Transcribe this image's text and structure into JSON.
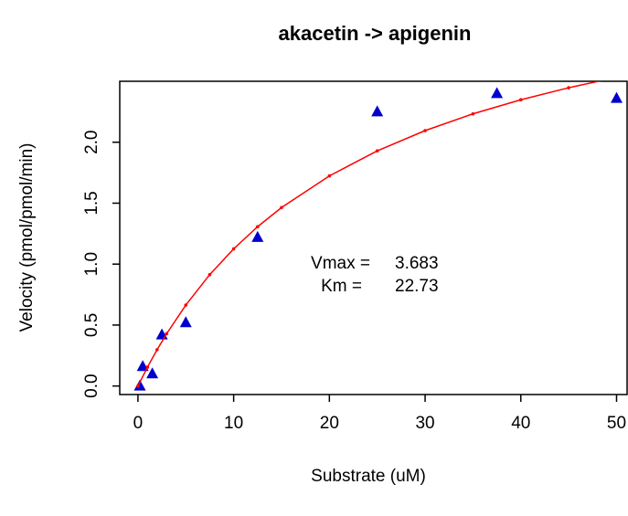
{
  "chart_data": {
    "type": "scatter",
    "title": "akacetin -> apigenin",
    "x_label": "Substrate (uM)",
    "y_label": "Velocity (pmol/pmol/min)",
    "annotations": [
      "Vmax =",
      "3.683",
      "Km =",
      "22.73"
    ],
    "xlim": [
      -1.9,
      51.1
    ],
    "ylim": [
      -0.07,
      2.5
    ],
    "xticks": [
      0,
      10,
      20,
      30,
      40,
      50
    ],
    "yticks": [
      {
        "value": 0,
        "label": "0.0"
      },
      0.5,
      {
        "value": 1,
        "label": "1.0"
      },
      1.5,
      {
        "value": 2,
        "label": "2.0"
      }
    ],
    "series": [
      {
        "color": "#0000cc",
        "marker": "triangle",
        "x": [
          0.2,
          0.5,
          1.5,
          2.5,
          5,
          12.5,
          25,
          37.5,
          50
        ],
        "values": [
          0.0,
          0.16,
          0.1,
          0.42,
          0.52,
          1.22,
          2.25,
          2.4,
          2.36
        ]
      },
      {
        "color": "#ff0000",
        "line": true,
        "x": [
          0,
          1,
          2,
          3,
          5,
          7.5,
          10,
          12.5,
          15,
          20,
          25,
          30,
          35,
          40,
          45,
          50
        ],
        "values": [
          0,
          0.1552,
          0.2979,
          0.4294,
          0.6641,
          0.9137,
          1.1253,
          1.3068,
          1.4642,
          1.7238,
          1.9291,
          2.0954,
          2.2329,
          2.3485,
          2.447,
          2.532
        ]
      }
    ]
  }
}
